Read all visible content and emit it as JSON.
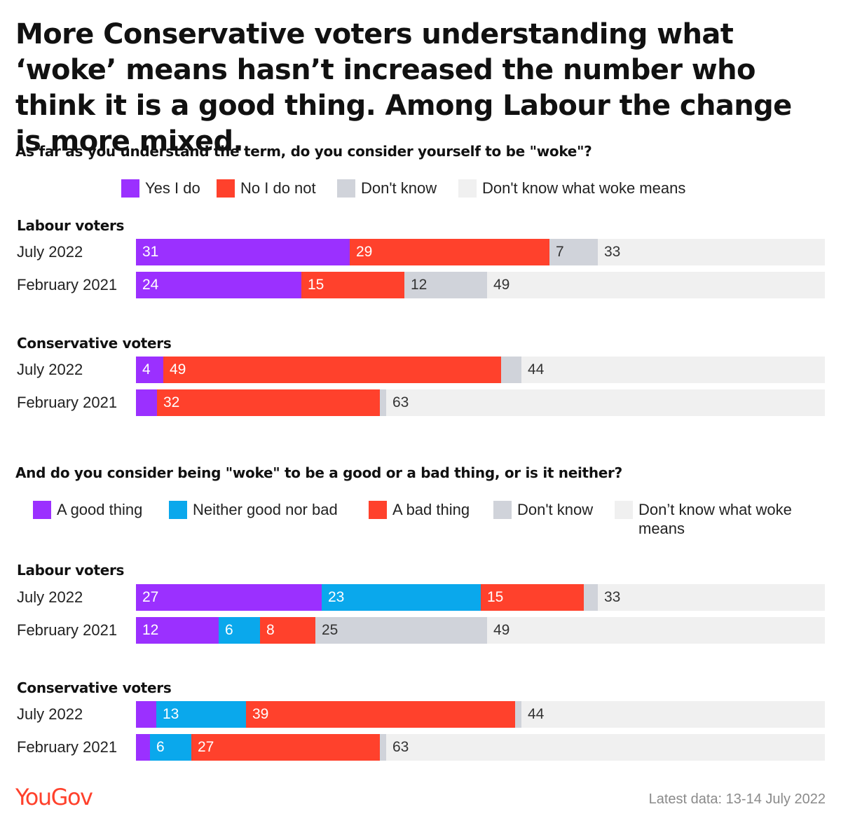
{
  "title": "More Conservative voters understanding what ‘woke’ means hasn’t increased the number who think it is a good thing. Among Labour the change is more mixed.",
  "footer": {
    "logo": "YouGov",
    "note": "Latest data: 13-14 July 2022"
  },
  "colors": {
    "purple": "#9b30ff",
    "red": "#ff412c",
    "blue": "#0aa8ec",
    "gray": "#d0d3da",
    "lightgray": "#f0f0f0"
  },
  "chart_data": [
    {
      "type": "bar",
      "stacked": true,
      "orientation": "horizontal",
      "question": "As far as you understand the term, do you consider yourself to be \"woke\"?",
      "series_names": [
        "Yes I do",
        "No I do not",
        "Don't know",
        "Don't know what woke means"
      ],
      "series_colors": [
        "purple",
        "red",
        "gray",
        "lightgray"
      ],
      "groups": [
        {
          "name": "Labour voters",
          "rows": [
            {
              "label": "July 2022",
              "values": [
                31,
                29,
                7,
                33
              ]
            },
            {
              "label": "February 2021",
              "values": [
                24,
                15,
                12,
                49
              ]
            }
          ]
        },
        {
          "name": "Conservative voters",
          "rows": [
            {
              "label": "July 2022",
              "values": [
                4,
                49,
                3,
                44
              ]
            },
            {
              "label": "February 2021",
              "values": [
                3,
                32,
                1,
                63
              ]
            }
          ]
        }
      ],
      "hidden_labels": [
        [
          [
            false,
            false,
            false,
            false
          ],
          [
            false,
            false,
            false,
            false
          ]
        ],
        [
          [
            false,
            false,
            true,
            false
          ],
          [
            true,
            false,
            true,
            false
          ]
        ]
      ],
      "xlim": [
        0,
        100
      ]
    },
    {
      "type": "bar",
      "stacked": true,
      "orientation": "horizontal",
      "question": "And do you consider being \"woke\" to be a good or a bad thing, or is it neither?",
      "series_names": [
        "A good thing",
        "Neither good nor bad",
        "A bad thing",
        "Don't know",
        "Don’t know what woke means"
      ],
      "series_colors": [
        "purple",
        "blue",
        "red",
        "gray",
        "lightgray"
      ],
      "groups": [
        {
          "name": "Labour voters",
          "rows": [
            {
              "label": "July 2022",
              "values": [
                27,
                23,
                15,
                2,
                33
              ]
            },
            {
              "label": "February 2021",
              "values": [
                12,
                6,
                8,
                25,
                49
              ]
            }
          ]
        },
        {
          "name": "Conservative voters",
          "rows": [
            {
              "label": "July 2022",
              "values": [
                3,
                13,
                39,
                1,
                44
              ]
            },
            {
              "label": "February 2021",
              "values": [
                2,
                6,
                27,
                1,
                63
              ]
            }
          ]
        }
      ],
      "hidden_labels": [
        [
          [
            false,
            false,
            false,
            true,
            false
          ],
          [
            false,
            false,
            false,
            false,
            false
          ]
        ],
        [
          [
            true,
            false,
            false,
            true,
            false
          ],
          [
            true,
            false,
            false,
            true,
            false
          ]
        ]
      ],
      "xlim": [
        0,
        100
      ]
    }
  ]
}
